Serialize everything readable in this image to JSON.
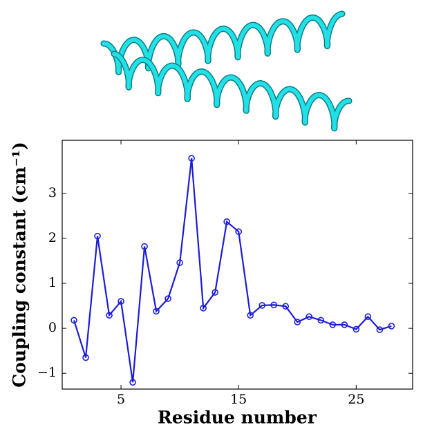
{
  "chart_data": {
    "type": "line",
    "x_label": "Residue number",
    "y_label": "Coupling constant (cm⁻¹)",
    "x": [
      1,
      2,
      3,
      4,
      5,
      6,
      7,
      8,
      9,
      10,
      11,
      12,
      13,
      14,
      15,
      16,
      17,
      18,
      19,
      20,
      21,
      22,
      23,
      24,
      25,
      26,
      27,
      28
    ],
    "series": [
      {
        "color": "#1c1cd6",
        "values": [
          0.18,
          -0.65,
          2.05,
          0.29,
          0.6,
          -1.2,
          1.82,
          0.38,
          0.66,
          1.46,
          3.78,
          0.45,
          0.8,
          2.37,
          2.15,
          0.29,
          0.51,
          0.52,
          0.49,
          0.14,
          0.26,
          0.18,
          0.08,
          0.08,
          -0.02,
          0.26,
          -0.03,
          0.05
        ]
      }
    ],
    "xlim": [
      0,
      29.8
    ],
    "ylim": [
      -1.35,
      4.18
    ],
    "xticks": [
      5,
      15,
      25
    ],
    "yticks": [
      {
        "value": -1,
        "label": "−1"
      },
      0,
      1,
      2,
      3
    ]
  }
}
